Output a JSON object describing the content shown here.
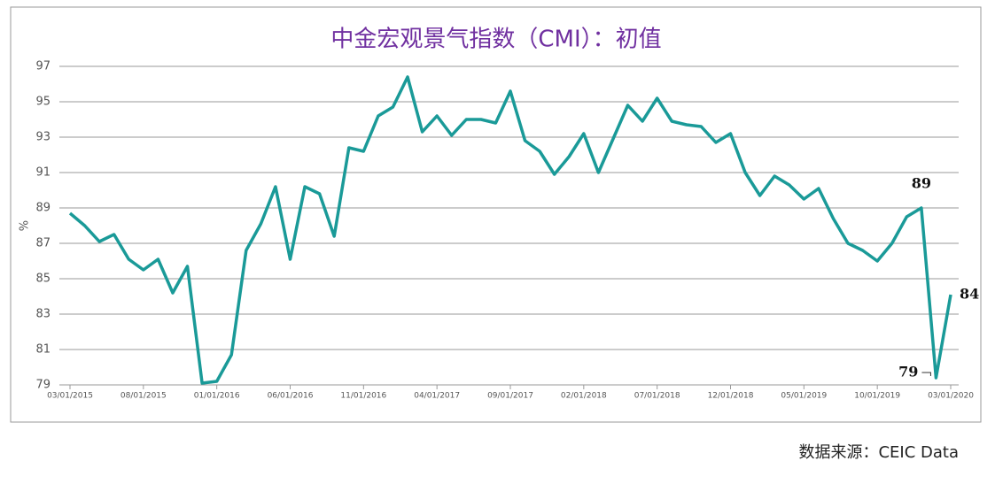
{
  "chart_data": {
    "type": "line",
    "title": "中金宏观景气指数（CMI）：初值",
    "y_label": "%",
    "source": "数据来源：CEIC Data",
    "categories": [
      "03/01/2015",
      null,
      null,
      null,
      null,
      "08/01/2015",
      null,
      null,
      null,
      null,
      "01/01/2016",
      null,
      null,
      null,
      null,
      "06/01/2016",
      null,
      null,
      null,
      null,
      "11/01/2016",
      null,
      null,
      null,
      null,
      "04/01/2017",
      null,
      null,
      null,
      null,
      "09/01/2017",
      null,
      null,
      null,
      null,
      "02/01/2018",
      null,
      null,
      null,
      null,
      "07/01/2018",
      null,
      null,
      null,
      null,
      "12/01/2018",
      null,
      null,
      null,
      null,
      "05/01/2019",
      null,
      null,
      null,
      null,
      "10/01/2019",
      null,
      null,
      null,
      null,
      "03/01/2020"
    ],
    "series": [
      {
        "color": "#1a9a98",
        "values": [
          88.7,
          88.0,
          87.1,
          87.5,
          86.1,
          85.5,
          86.1,
          84.2,
          85.7,
          79.1,
          79.2,
          80.7,
          86.6,
          88.1,
          90.2,
          86.1,
          90.2,
          89.8,
          87.4,
          92.4,
          92.2,
          94.2,
          94.7,
          96.4,
          93.3,
          94.2,
          93.1,
          94.0,
          94.0,
          93.8,
          95.6,
          92.8,
          92.2,
          90.9,
          91.9,
          93.2,
          91.0,
          92.9,
          94.8,
          93.9,
          95.2,
          93.9,
          93.7,
          93.6,
          92.7,
          93.2,
          91.0,
          89.7,
          90.8,
          90.3,
          89.5,
          90.1,
          88.4,
          87.0,
          86.6,
          86.0,
          87.0,
          88.5,
          89.0,
          79.4,
          84.1
        ],
        "value_labels": [
          null,
          null,
          null,
          null,
          null,
          null,
          null,
          null,
          null,
          null,
          null,
          null,
          null,
          null,
          null,
          null,
          null,
          null,
          null,
          null,
          null,
          null,
          null,
          null,
          null,
          null,
          null,
          null,
          null,
          null,
          null,
          null,
          null,
          null,
          null,
          null,
          null,
          null,
          null,
          null,
          null,
          null,
          null,
          null,
          null,
          null,
          null,
          null,
          null,
          null,
          null,
          null,
          null,
          null,
          null,
          null,
          null,
          null,
          "89",
          "79",
          "84"
        ]
      }
    ],
    "ylim": [
      79,
      97
    ],
    "yticks": [
      79,
      81,
      83,
      85,
      87,
      89,
      91,
      93,
      95,
      97
    ],
    "grid": true,
    "title_color": "#7030a0"
  }
}
